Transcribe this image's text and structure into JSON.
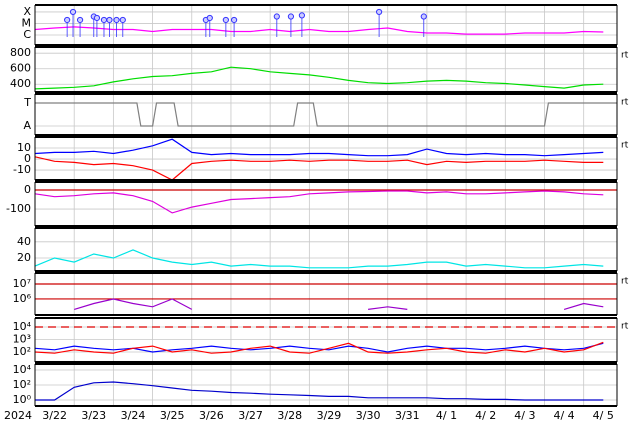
{
  "chart_data": [
    {
      "type": "line",
      "log": true,
      "ylim": [
        1.35e-07,
        0.0004
      ],
      "yticks": [
        {
          "value": 0.0001,
          "label": "X"
        },
        {
          "value": 1e-05,
          "label": "M"
        },
        {
          "value": 1e-06,
          "label": "C"
        }
      ],
      "x": [
        0,
        0.5,
        1,
        1.5,
        2,
        2.5,
        3,
        3.5,
        4,
        4.5,
        5,
        5.5,
        6,
        6.5,
        7,
        7.5,
        8,
        8.5,
        9,
        9.5,
        10,
        10.5,
        11,
        11.5,
        12,
        12.5,
        13,
        13.5,
        14,
        14.5
      ],
      "series": [
        {
          "color": "#ff00ff",
          "values": [
            3e-06,
            4e-06,
            5e-06,
            4e-06,
            3e-06,
            3e-06,
            2e-06,
            3e-06,
            3e-06,
            3e-06,
            2e-06,
            2e-06,
            3e-06,
            2e-06,
            3e-06,
            2e-06,
            2e-06,
            3e-06,
            4e-06,
            2e-06,
            1.5e-06,
            1.5e-06,
            1.2e-06,
            1.2e-06,
            1.2e-06,
            1.5e-06,
            1.5e-06,
            1.5e-06,
            2e-06,
            1.8e-06
          ]
        },
        {
          "type": "scatter",
          "color": "#3333ff",
          "x": [
            0.82,
            0.97,
            1.15,
            1.5,
            1.58,
            1.76,
            1.9,
            2.08,
            2.24,
            4.36,
            4.46,
            4.87,
            5.08,
            6.17,
            6.53,
            6.81,
            8.78,
            9.92
          ],
          "values": [
            2e-05,
            0.0001,
            2e-05,
            4e-05,
            3e-05,
            2e-05,
            2e-05,
            2e-05,
            2e-05,
            2e-05,
            3e-05,
            2e-05,
            2e-05,
            4e-05,
            4e-05,
            5e-05,
            0.0001,
            4e-05
          ]
        }
      ]
    },
    {
      "type": "line",
      "ylim": [
        300,
        880
      ],
      "yticks": [
        400,
        600,
        800
      ],
      "note": "rt",
      "x": [
        0,
        0.5,
        1,
        1.5,
        2,
        2.5,
        3,
        3.5,
        4,
        4.5,
        5,
        5.5,
        6,
        6.5,
        7,
        7.5,
        8,
        8.5,
        9,
        9.5,
        10,
        10.5,
        11,
        11.5,
        12,
        12.5,
        13,
        13.5,
        14,
        14.5
      ],
      "series": [
        {
          "color": "#00dd00",
          "values": [
            340,
            350,
            360,
            380,
            430,
            470,
            500,
            510,
            540,
            560,
            620,
            600,
            560,
            540,
            520,
            490,
            450,
            420,
            410,
            420,
            440,
            450,
            440,
            420,
            410,
            390,
            370,
            350,
            390,
            400
          ]
        }
      ]
    },
    {
      "type": "line",
      "ylim": [
        -0.39,
        1.39
      ],
      "yticks": [
        {
          "value": 1,
          "label": "T"
        },
        {
          "value": 0,
          "label": "A"
        }
      ],
      "note": "rt",
      "x": [
        0,
        2.6,
        2.7,
        3.0,
        3.1,
        3.55,
        3.65,
        6.6,
        6.7,
        7.1,
        7.2,
        13.0,
        13.1,
        14.85
      ],
      "series": [
        {
          "color": "#808080",
          "values": [
            1,
            1,
            0,
            0,
            1,
            1,
            0,
            0,
            1,
            1,
            0,
            0,
            1,
            1
          ]
        }
      ]
    },
    {
      "type": "line",
      "ylim": [
        -19,
        20
      ],
      "yticks": [
        -10,
        0,
        10
      ],
      "note": "rt",
      "x": [
        0,
        0.5,
        1,
        1.5,
        2,
        2.5,
        3,
        3.5,
        4,
        4.5,
        5,
        5.5,
        6,
        6.5,
        7,
        7.5,
        8,
        8.5,
        9,
        9.5,
        10,
        10.5,
        11,
        11.5,
        12,
        12.5,
        13,
        13.5,
        14,
        14.5
      ],
      "series": [
        {
          "color": "#0000ff",
          "values": [
            5,
            6,
            6,
            7,
            5,
            8,
            12,
            18,
            6,
            4,
            5,
            4,
            4,
            4,
            5,
            5,
            4,
            3,
            3,
            4,
            9,
            5,
            4,
            5,
            4,
            4,
            3,
            4,
            5,
            6
          ]
        },
        {
          "color": "#ff0000",
          "values": [
            2,
            -2,
            -3,
            -5,
            -4,
            -6,
            -10,
            -19,
            -4,
            -2,
            -1,
            -2,
            -2,
            -1,
            -2,
            -1,
            -1,
            -2,
            -2,
            -1,
            -5,
            -2,
            -3,
            -2,
            -2,
            -2,
            -1,
            -2,
            -3,
            -3
          ]
        }
      ]
    },
    {
      "type": "line",
      "ylim": [
        -189,
        42
      ],
      "yticks": [
        -100,
        0
      ],
      "hlines": [
        0
      ],
      "hline_color": "#cc0000",
      "x": [
        0,
        0.5,
        1,
        1.5,
        2,
        2.5,
        3,
        3.5,
        4,
        4.5,
        5,
        5.5,
        6,
        6.5,
        7,
        7.5,
        8,
        8.5,
        9,
        9.5,
        10,
        10.5,
        11,
        11.5,
        12,
        12.5,
        13,
        13.5,
        14,
        14.5
      ],
      "series": [
        {
          "color": "#dd00dd",
          "values": [
            -20,
            -35,
            -30,
            -20,
            -15,
            -30,
            -60,
            -120,
            -90,
            -70,
            -50,
            -45,
            -40,
            -35,
            -20,
            -15,
            -10,
            -8,
            -5,
            -5,
            -15,
            -10,
            -20,
            -20,
            -15,
            -10,
            -5,
            -10,
            -20,
            -25
          ]
        }
      ]
    },
    {
      "type": "line",
      "ylim": [
        4,
        57
      ],
      "yticks": [
        20,
        40
      ],
      "x": [
        0,
        0.5,
        1,
        1.5,
        2,
        2.5,
        3,
        3.5,
        4,
        4.5,
        5,
        5.5,
        6,
        6.5,
        7,
        7.5,
        8,
        8.5,
        9,
        9.5,
        10,
        10.5,
        11,
        11.5,
        12,
        12.5,
        13,
        13.5,
        14,
        14.5
      ],
      "series": [
        {
          "color": "#00e5e5",
          "values": [
            10,
            20,
            15,
            25,
            20,
            30,
            20,
            15,
            12,
            15,
            10,
            12,
            10,
            10,
            8,
            8,
            8,
            10,
            10,
            12,
            15,
            15,
            10,
            12,
            10,
            8,
            8,
            10,
            12,
            10
          ]
        }
      ]
    },
    {
      "type": "line",
      "log": true,
      "ylim": [
        85000,
        54000000
      ],
      "note": "rt",
      "yticks": [
        {
          "value": 1000000,
          "label": "10⁶"
        },
        {
          "value": 10000000,
          "label": "10⁷"
        }
      ],
      "hlines": [
        10000000,
        1000000
      ],
      "hline_color": "#cc0000",
      "x": [
        0,
        0.5,
        1,
        1.5,
        2,
        2.5,
        3,
        3.5,
        4,
        4.5,
        5,
        5.5,
        6,
        6.5,
        7,
        7.5,
        8,
        8.5,
        9,
        9.5,
        10,
        10.5,
        11,
        11.5,
        12,
        12.5,
        13,
        13.5,
        14,
        14.5
      ],
      "series": [
        {
          "color": "#9900cc",
          "values": [
            null,
            null,
            200000,
            500000,
            1000000,
            500000,
            300000,
            1000000,
            200000,
            null,
            null,
            null,
            null,
            null,
            null,
            null,
            null,
            200000,
            300000,
            200000,
            null,
            null,
            null,
            null,
            null,
            null,
            null,
            200000,
            500000,
            300000
          ]
        }
      ]
    },
    {
      "type": "line",
      "log": true,
      "ylim": [
        16,
        52000
      ],
      "note": "rt",
      "yticks": [
        {
          "value": 100,
          "label": "10²"
        },
        {
          "value": 1000,
          "label": "10³"
        },
        {
          "value": 10000,
          "label": "10⁴"
        }
      ],
      "hlines": [
        10000
      ],
      "hline_color": "#dd0000",
      "hline_dash": true,
      "x": [
        0,
        0.5,
        1,
        1.5,
        2,
        2.5,
        3,
        3.5,
        4,
        4.5,
        5,
        5.5,
        6,
        6.5,
        7,
        7.5,
        8,
        8.5,
        9,
        9.5,
        10,
        10.5,
        11,
        11.5,
        12,
        12.5,
        13,
        13.5,
        14,
        14.5
      ],
      "series": [
        {
          "color": "#0000ff",
          "values": [
            200,
            150,
            300,
            200,
            150,
            200,
            100,
            150,
            200,
            300,
            200,
            150,
            200,
            300,
            200,
            150,
            300,
            200,
            100,
            200,
            300,
            200,
            200,
            150,
            200,
            300,
            200,
            150,
            200,
            500
          ]
        },
        {
          "color": "#ff0000",
          "values": [
            100,
            80,
            150,
            100,
            80,
            200,
            300,
            100,
            150,
            80,
            100,
            200,
            300,
            100,
            80,
            200,
            500,
            100,
            80,
            100,
            150,
            200,
            100,
            80,
            150,
            100,
            200,
            100,
            150,
            600
          ]
        }
      ]
    },
    {
      "type": "line",
      "log": true,
      "ylim": [
        0.16,
        63000
      ],
      "yticks": [
        {
          "value": 1,
          "label": "10⁰"
        },
        {
          "value": 100,
          "label": "10²"
        },
        {
          "value": 10000,
          "label": "10⁴"
        }
      ],
      "x": [
        0,
        0.5,
        1,
        1.5,
        2,
        2.5,
        3,
        3.5,
        4,
        4.5,
        5,
        5.5,
        6,
        6.5,
        7,
        7.5,
        8,
        8.5,
        9,
        9.5,
        10,
        10.5,
        11,
        11.5,
        12,
        12.5,
        13,
        13.5,
        14,
        14.5
      ],
      "series": [
        {
          "color": "#0000cc",
          "values": [
            1,
            1,
            50,
            200,
            250,
            150,
            80,
            40,
            20,
            15,
            10,
            8,
            6,
            5,
            4,
            3,
            3,
            2,
            2,
            2,
            2,
            1.5,
            1.5,
            1.2,
            1.2,
            1,
            1,
            1,
            1,
            1
          ]
        }
      ],
      "xlim": [
        0,
        14.85
      ],
      "xlabel": "2024",
      "xgrid": [
        1,
        2,
        3,
        4,
        5,
        6,
        7,
        8,
        9,
        10,
        11,
        12,
        13,
        14
      ],
      "xticks": [
        {
          "value": 0.5,
          "label": "3/22"
        },
        {
          "value": 1.5,
          "label": "3/23"
        },
        {
          "value": 2.5,
          "label": "3/24"
        },
        {
          "value": 3.5,
          "label": "3/25"
        },
        {
          "value": 4.5,
          "label": "3/26"
        },
        {
          "value": 5.5,
          "label": "3/27"
        },
        {
          "value": 6.5,
          "label": "3/28"
        },
        {
          "value": 7.5,
          "label": "3/29"
        },
        {
          "value": 8.5,
          "label": "3/30"
        },
        {
          "value": 9.5,
          "label": "3/31"
        },
        {
          "value": 10.5,
          "label": "4/ 1"
        },
        {
          "value": 11.5,
          "label": "4/ 2"
        },
        {
          "value": 12.5,
          "label": "4/ 3"
        },
        {
          "value": 13.5,
          "label": "4/ 4"
        },
        {
          "value": 14.5,
          "label": "4/ 5"
        }
      ]
    }
  ]
}
